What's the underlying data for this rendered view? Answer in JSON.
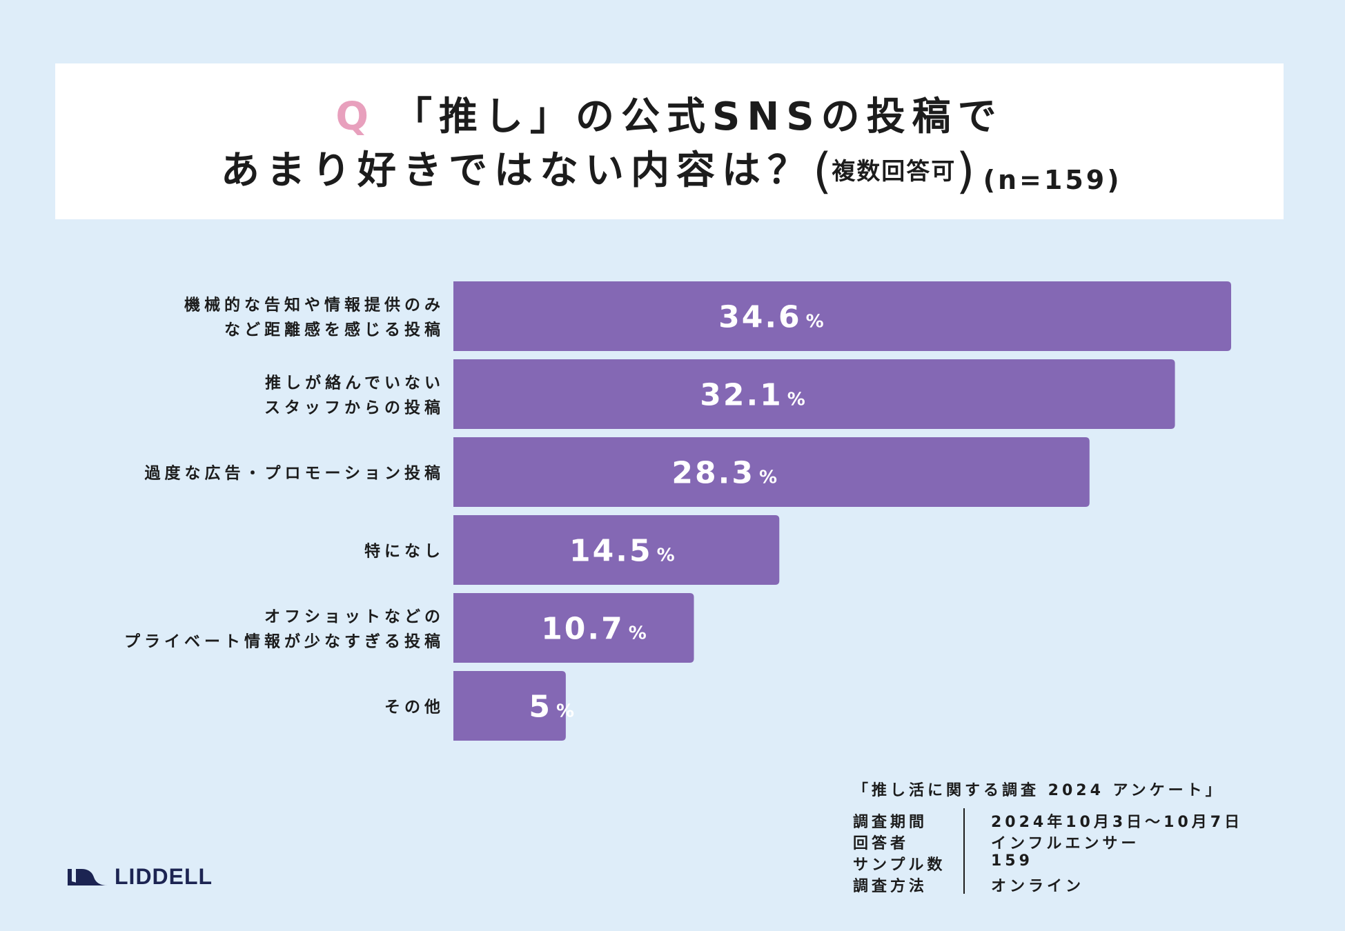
{
  "title": {
    "q_mark": "Q",
    "line1": "「推し」の公式SNSの投稿で",
    "line2": "あまり好きではない内容は？",
    "paren_open": "(",
    "note": "複数回答可",
    "paren_close": ")",
    "n_count": "(n=159)"
  },
  "colors": {
    "bar": "#8468b4",
    "background": "#deedf9",
    "q_mark": "#e8a0bd",
    "logo": "#1c2452"
  },
  "chart_data": {
    "type": "bar",
    "orientation": "horizontal",
    "categories": [
      [
        "機械的な告知や情報提供のみ",
        "など距離感を感じる投稿"
      ],
      [
        "推しが絡んでいない",
        "スタッフからの投稿"
      ],
      [
        "過度な広告・プロモーション投稿"
      ],
      [
        "特になし"
      ],
      [
        "オフショットなどの",
        "プライベート情報が少なすぎる投稿"
      ],
      [
        "その他"
      ]
    ],
    "values": [
      34.6,
      32.1,
      28.3,
      14.5,
      10.7,
      5
    ],
    "value_labels": [
      "34.6",
      "32.1",
      "28.3",
      "14.5",
      "10.7",
      "5"
    ],
    "unit": "%",
    "xlim": [
      0,
      34.6
    ],
    "grid": false,
    "legend": "none"
  },
  "footer": {
    "survey_title": "「推し活に関する調査 2024 アンケート」",
    "rows": [
      {
        "key": "調査期間",
        "value": "2024年10月3日〜10月7日"
      },
      {
        "key": "回答者",
        "value": "インフルエンサー"
      },
      {
        "key": "サンプル数",
        "value": "159"
      },
      {
        "key": "調査方法",
        "value": "オンライン"
      }
    ]
  },
  "logo": {
    "text": "LIDDELL",
    "icon": "liddell-logo-icon"
  }
}
